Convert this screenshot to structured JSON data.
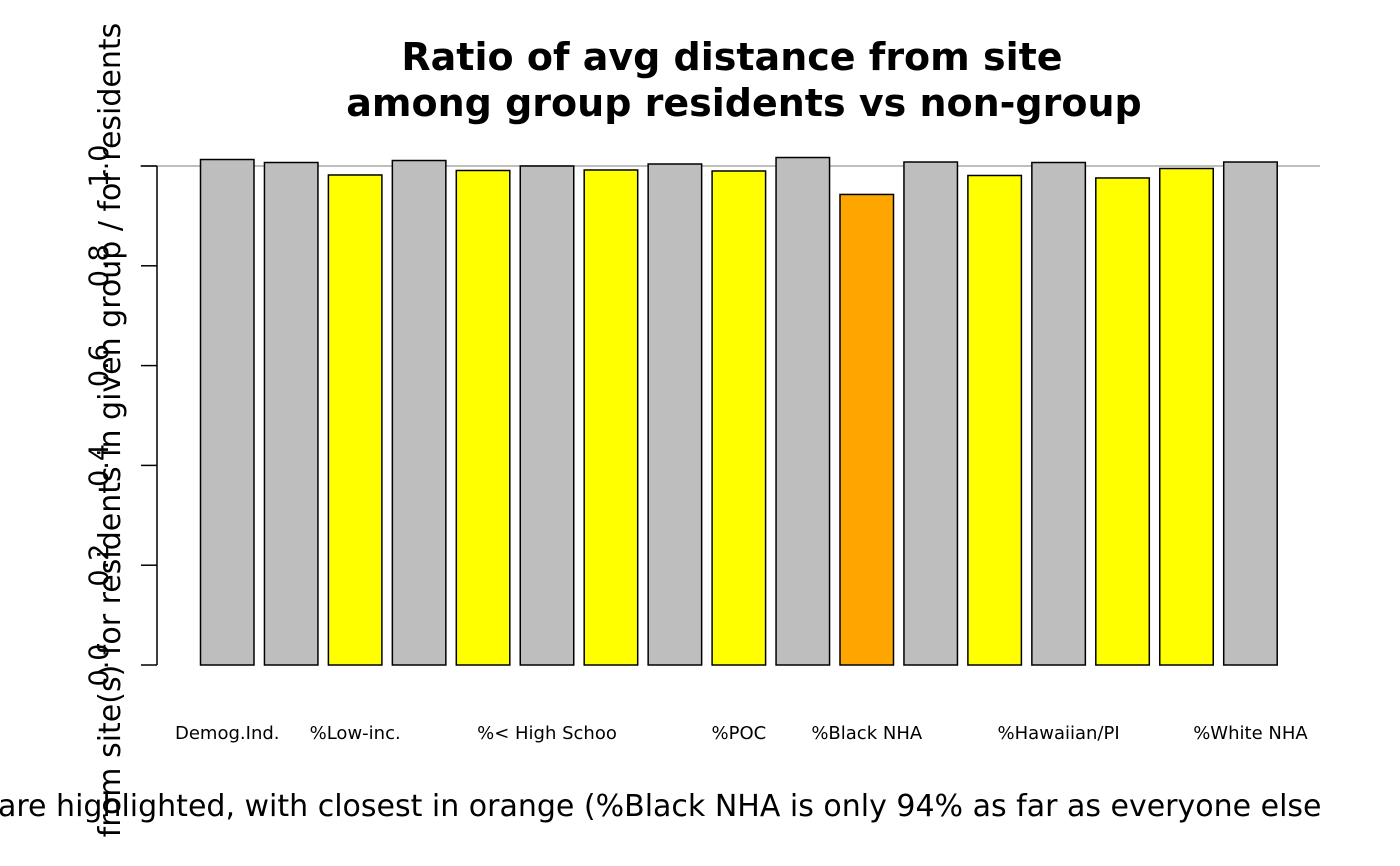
{
  "chart_data": {
    "type": "bar",
    "title_line1": "Ratio of avg distance from site",
    "title_line2": "among group residents vs non-group",
    "ylabel": "from site(s) for residents in given group / for residents",
    "xlabel": "are highlighted, with closest in orange (%Black NHA is only 94% as far as everyone else",
    "ylim": [
      0,
      1.0
    ],
    "yticks": [
      "0.0",
      "0.2",
      "0.4",
      "0.6",
      "0.8",
      "1.0"
    ],
    "reference_line": 1.0,
    "values": [
      1.013,
      1.007,
      0.982,
      1.011,
      0.991,
      1.0,
      0.992,
      1.004,
      0.99,
      1.017,
      0.943,
      1.008,
      0.981,
      1.007,
      0.976,
      0.995,
      1.008
    ],
    "bar_colors": [
      "#bebebe",
      "#bebebe",
      "#ffff00",
      "#bebebe",
      "#ffff00",
      "#bebebe",
      "#ffff00",
      "#bebebe",
      "#ffff00",
      "#bebebe",
      "#ffa500",
      "#bebebe",
      "#ffff00",
      "#bebebe",
      "#ffff00",
      "#ffff00",
      "#bebebe"
    ],
    "shown_labels": [
      {
        "bar": 0,
        "text": "Demog.Ind."
      },
      {
        "bar": 2,
        "text": "%Low-inc."
      },
      {
        "bar": 5,
        "text": "%< High Schoo"
      },
      {
        "bar": 8,
        "text": "%POC"
      },
      {
        "bar": 10,
        "text": "%Black NHA"
      },
      {
        "bar": 13,
        "text": "%Hawaiian/PI"
      },
      {
        "bar": 16,
        "text": "%White NHA"
      }
    ],
    "grid": false,
    "legend": "none"
  }
}
